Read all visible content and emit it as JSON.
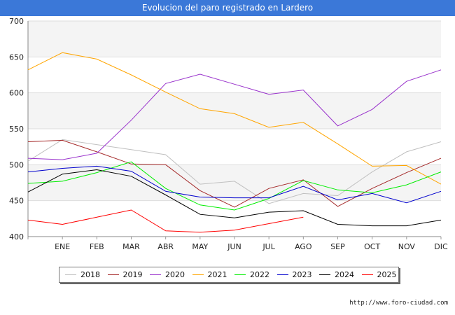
{
  "header": {
    "title": "Evolucion del paro registrado en Lardero"
  },
  "footer": {
    "source": "http://www.foro-ciudad.com"
  },
  "chart_data": {
    "type": "line",
    "title": "Evolucion del paro registrado en Lardero",
    "xlabel": "",
    "ylabel": "",
    "ylim": [
      400,
      700
    ],
    "yticks": [
      400,
      450,
      500,
      550,
      600,
      650,
      700
    ],
    "categories": [
      "",
      "ENE",
      "FEB",
      "MAR",
      "ABR",
      "MAY",
      "JUN",
      "JUL",
      "AGO",
      "SEP",
      "OCT",
      "NOV",
      "DIC"
    ],
    "grid": true,
    "legend_position": "bottom",
    "series": [
      {
        "name": "2018",
        "color": "#c0c0c0",
        "values": [
          505,
          535,
          528,
          521,
          514,
          473,
          477,
          446,
          460,
          457,
          490,
          518,
          532
        ]
      },
      {
        "name": "2019",
        "color": "#a52a2a",
        "values": [
          532,
          534,
          518,
          501,
          500,
          464,
          441,
          467,
          479,
          442,
          467,
          489,
          509
        ]
      },
      {
        "name": "2020",
        "color": "#9932cc",
        "values": [
          509,
          507,
          516,
          562,
          613,
          626,
          612,
          598,
          604,
          554,
          577,
          616,
          632
        ]
      },
      {
        "name": "2021",
        "color": "#ffa500",
        "values": [
          632,
          656,
          647,
          625,
          601,
          578,
          571,
          552,
          559,
          529,
          498,
          499,
          473
        ]
      },
      {
        "name": "2022",
        "color": "#00ee00",
        "values": [
          474,
          477,
          489,
          504,
          467,
          444,
          437,
          453,
          478,
          465,
          461,
          472,
          490
        ]
      },
      {
        "name": "2023",
        "color": "#0000cd",
        "values": [
          490,
          495,
          498,
          491,
          463,
          455,
          454,
          454,
          470,
          451,
          460,
          447,
          463
        ]
      },
      {
        "name": "2024",
        "color": "#000000",
        "values": [
          462,
          487,
          493,
          484,
          458,
          431,
          426,
          434,
          436,
          417,
          415,
          415,
          423
        ]
      },
      {
        "name": "2025",
        "color": "#ff0000",
        "values": [
          423,
          417,
          427,
          437,
          408,
          406,
          409,
          418,
          427,
          null,
          null,
          null,
          null
        ]
      }
    ]
  }
}
